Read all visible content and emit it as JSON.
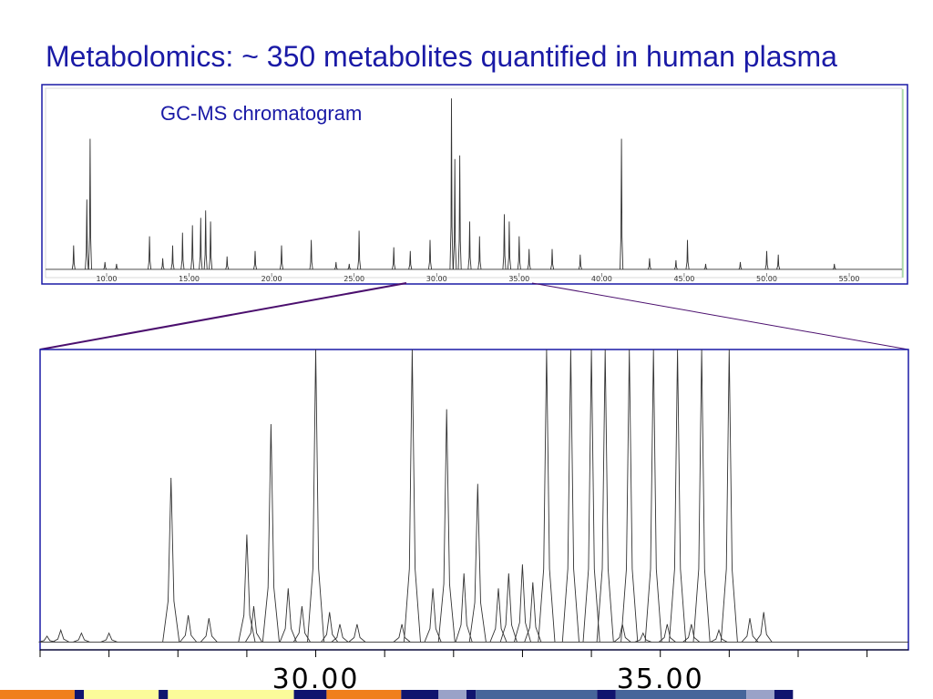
{
  "slide": {
    "title": "Metabolomics: ~ 350 metabolites quantified in human plasma"
  },
  "annotation": "GC-MS chromatogram",
  "colors": {
    "title": "#1a1aa6",
    "frame": "#1a1aa6",
    "zoom_lines": "#4b0f6e",
    "trace": "#333333",
    "bar_orange": "#f07f1c",
    "bar_navy": "#10146e",
    "bar_yellow": "#fbfb9a",
    "bar_lavender": "#9aa2c8",
    "bar_steel": "#46659a"
  },
  "chart_data": [
    {
      "type": "line",
      "title": "GC-MS chromatogram",
      "xlabel": "",
      "ylabel": "",
      "xlim": [
        6.3,
        58.2
      ],
      "ylim": [
        0,
        100
      ],
      "grid": false,
      "x_ticks": [
        10.0,
        15.0,
        20.0,
        25.0,
        30.0,
        35.0,
        40.0,
        45.0,
        50.0,
        55.0
      ],
      "x_tick_labels": [
        "10.00",
        "15.00",
        "20.00",
        "25.00",
        "30.00",
        "35.00",
        "40.00",
        "45.00",
        "50.00",
        "55.00"
      ],
      "baseline": 2,
      "peaks": [
        {
          "x": 8.0,
          "y": 15
        },
        {
          "x": 8.8,
          "y": 40
        },
        {
          "x": 9.0,
          "y": 73
        },
        {
          "x": 9.9,
          "y": 6
        },
        {
          "x": 10.6,
          "y": 5
        },
        {
          "x": 12.6,
          "y": 20
        },
        {
          "x": 13.4,
          "y": 8
        },
        {
          "x": 14.0,
          "y": 15
        },
        {
          "x": 14.6,
          "y": 22
        },
        {
          "x": 15.2,
          "y": 26
        },
        {
          "x": 15.7,
          "y": 30
        },
        {
          "x": 16.0,
          "y": 34
        },
        {
          "x": 16.3,
          "y": 28
        },
        {
          "x": 17.3,
          "y": 9
        },
        {
          "x": 19.0,
          "y": 12
        },
        {
          "x": 20.6,
          "y": 15
        },
        {
          "x": 22.4,
          "y": 18
        },
        {
          "x": 23.9,
          "y": 6
        },
        {
          "x": 24.7,
          "y": 5
        },
        {
          "x": 25.3,
          "y": 23
        },
        {
          "x": 27.4,
          "y": 14
        },
        {
          "x": 28.4,
          "y": 12
        },
        {
          "x": 29.6,
          "y": 18
        },
        {
          "x": 30.9,
          "y": 95
        },
        {
          "x": 31.1,
          "y": 62
        },
        {
          "x": 31.4,
          "y": 64
        },
        {
          "x": 32.0,
          "y": 28
        },
        {
          "x": 32.6,
          "y": 20
        },
        {
          "x": 34.1,
          "y": 32
        },
        {
          "x": 34.4,
          "y": 28
        },
        {
          "x": 35.0,
          "y": 20
        },
        {
          "x": 35.6,
          "y": 13
        },
        {
          "x": 37.0,
          "y": 13
        },
        {
          "x": 38.7,
          "y": 10
        },
        {
          "x": 41.2,
          "y": 73
        },
        {
          "x": 42.9,
          "y": 8
        },
        {
          "x": 44.5,
          "y": 7
        },
        {
          "x": 45.2,
          "y": 18
        },
        {
          "x": 46.3,
          "y": 5
        },
        {
          "x": 48.4,
          "y": 6
        },
        {
          "x": 50.0,
          "y": 12
        },
        {
          "x": 50.7,
          "y": 10
        },
        {
          "x": 54.1,
          "y": 5
        }
      ]
    },
    {
      "type": "line",
      "title": "",
      "xlabel": "",
      "ylabel": "",
      "xlim": [
        26.0,
        38.6
      ],
      "ylim": [
        0,
        100
      ],
      "grid": false,
      "x_ticks": [
        30.0,
        35.0
      ],
      "x_tick_labels": [
        "30.00",
        "35.00"
      ],
      "baseline": 2,
      "peaks": [
        {
          "x": 26.1,
          "y": 4
        },
        {
          "x": 26.3,
          "y": 6
        },
        {
          "x": 26.6,
          "y": 5
        },
        {
          "x": 27.0,
          "y": 5
        },
        {
          "x": 27.9,
          "y": 57
        },
        {
          "x": 28.15,
          "y": 11
        },
        {
          "x": 28.45,
          "y": 10
        },
        {
          "x": 29.0,
          "y": 38
        },
        {
          "x": 29.1,
          "y": 14
        },
        {
          "x": 29.35,
          "y": 75
        },
        {
          "x": 29.6,
          "y": 20
        },
        {
          "x": 29.8,
          "y": 14
        },
        {
          "x": 30.0,
          "y": 100
        },
        {
          "x": 30.2,
          "y": 12
        },
        {
          "x": 30.35,
          "y": 8
        },
        {
          "x": 30.6,
          "y": 8
        },
        {
          "x": 31.25,
          "y": 8
        },
        {
          "x": 31.4,
          "y": 100
        },
        {
          "x": 31.7,
          "y": 20
        },
        {
          "x": 31.9,
          "y": 80
        },
        {
          "x": 32.15,
          "y": 25
        },
        {
          "x": 32.35,
          "y": 55
        },
        {
          "x": 32.65,
          "y": 20
        },
        {
          "x": 32.8,
          "y": 25
        },
        {
          "x": 33.0,
          "y": 28
        },
        {
          "x": 33.15,
          "y": 22
        },
        {
          "x": 33.35,
          "y": 100
        },
        {
          "x": 33.7,
          "y": 100
        },
        {
          "x": 34.0,
          "y": 100
        },
        {
          "x": 34.2,
          "y": 100
        },
        {
          "x": 34.45,
          "y": 8
        },
        {
          "x": 34.55,
          "y": 100
        },
        {
          "x": 34.75,
          "y": 5
        },
        {
          "x": 34.9,
          "y": 100
        },
        {
          "x": 35.1,
          "y": 8
        },
        {
          "x": 35.25,
          "y": 100
        },
        {
          "x": 35.45,
          "y": 8
        },
        {
          "x": 35.6,
          "y": 100
        },
        {
          "x": 35.85,
          "y": 6
        },
        {
          "x": 36.0,
          "y": 100
        },
        {
          "x": 36.3,
          "y": 10
        },
        {
          "x": 36.5,
          "y": 12
        }
      ]
    }
  ],
  "color_bar": [
    {
      "color": "orange",
      "from": 0.0,
      "to": 0.08
    },
    {
      "color": "navy",
      "from": 0.08,
      "to": 0.09
    },
    {
      "color": "yellow",
      "from": 0.09,
      "to": 0.17
    },
    {
      "color": "navy",
      "from": 0.17,
      "to": 0.18
    },
    {
      "color": "yellow",
      "from": 0.18,
      "to": 0.315
    },
    {
      "color": "navy",
      "from": 0.315,
      "to": 0.35
    },
    {
      "color": "orange",
      "from": 0.35,
      "to": 0.43
    },
    {
      "color": "navy",
      "from": 0.43,
      "to": 0.47
    },
    {
      "color": "lavender",
      "from": 0.47,
      "to": 0.5
    },
    {
      "color": "navy",
      "from": 0.5,
      "to": 0.51
    },
    {
      "color": "steel",
      "from": 0.51,
      "to": 0.64
    },
    {
      "color": "navy",
      "from": 0.64,
      "to": 0.66
    },
    {
      "color": "steel",
      "from": 0.66,
      "to": 0.8
    },
    {
      "color": "lavender",
      "from": 0.8,
      "to": 0.83
    },
    {
      "color": "navy",
      "from": 0.83,
      "to": 0.85
    },
    {
      "color": "white",
      "from": 0.85,
      "to": 1.0
    }
  ]
}
